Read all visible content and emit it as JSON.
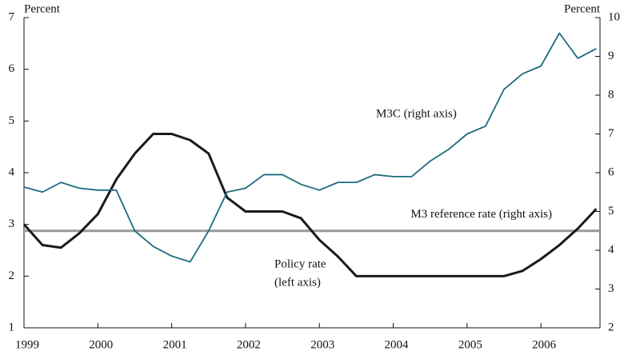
{
  "chart_data": {
    "type": "line",
    "y_label": "Percent",
    "y2_label": "Percent",
    "annotations": [
      "(left axis)"
    ],
    "x": [
      1999,
      1999.25,
      1999.5,
      1999.75,
      2000,
      2000.25,
      2000.5,
      2000.75,
      2001,
      2001.25,
      2001.5,
      2001.75,
      2002,
      2002.25,
      2002.5,
      2002.75,
      2003,
      2003.25,
      2003.5,
      2003.75,
      2004,
      2004.25,
      2004.5,
      2004.75,
      2005,
      2005.25,
      2005.5,
      2005.75,
      2006,
      2006.25,
      2006.5,
      2006.75
    ],
    "series": [
      {
        "name": "Policy rate",
        "color": "#1a1a1a",
        "axis": "y",
        "values": [
          3.0,
          2.6,
          2.55,
          2.83,
          3.2,
          3.87,
          4.37,
          4.75,
          4.75,
          4.63,
          4.37,
          3.52,
          3.25,
          3.25,
          3.25,
          3.12,
          2.7,
          2.38,
          2.0,
          2.0,
          2.0,
          2.0,
          2.0,
          2.0,
          2.0,
          2.0,
          2.0,
          2.1,
          2.33,
          2.6,
          2.92,
          3.3
        ]
      },
      {
        "name": "M3C (right axis)",
        "color": "#1f6b80",
        "axis": "y2",
        "values": [
          5.63,
          5.5,
          5.75,
          5.6,
          5.55,
          5.55,
          4.5,
          4.1,
          3.85,
          3.7,
          4.5,
          5.5,
          5.6,
          5.95,
          5.95,
          5.7,
          5.55,
          5.75,
          5.75,
          5.95,
          5.9,
          5.9,
          6.3,
          6.6,
          7.0,
          7.2,
          8.15,
          8.55,
          8.75,
          9.6,
          8.95,
          9.2
        ]
      }
    ],
    "reference_line": {
      "name": "M3 reference rate (right axis)",
      "value": 4.5,
      "axis": "y2",
      "color": "#999999"
    },
    "xlim": [
      1999,
      2006.8
    ],
    "xticks": [
      1999,
      2000,
      2001,
      2002,
      2003,
      2004,
      2005,
      2006
    ],
    "ylim": [
      1,
      7
    ],
    "yticks": [
      1,
      2,
      3,
      4,
      5,
      6,
      7
    ],
    "y2lim": [
      2,
      10
    ],
    "y2ticks": [
      2,
      3,
      4,
      5,
      6,
      7,
      8,
      9,
      10
    ]
  }
}
